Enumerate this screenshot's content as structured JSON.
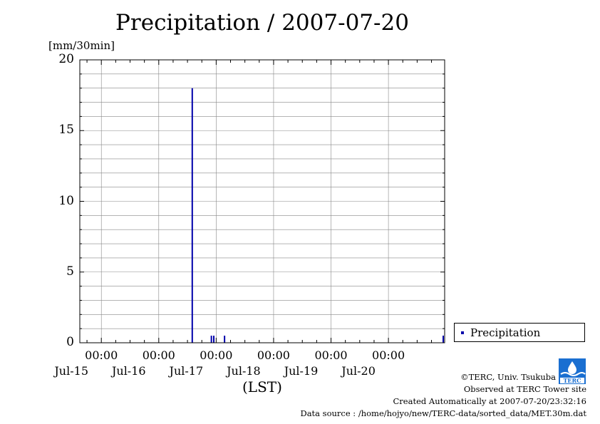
{
  "colors": {
    "bar": "#0000aa",
    "grid": "#888888",
    "logo": "#1a6fd1"
  },
  "chart_data": {
    "type": "bar",
    "title": "Precipitation / 2007-07-20",
    "ylabel": "[mm/30min]",
    "xlabel": "(LST)",
    "ylim": [
      0,
      20
    ],
    "yticks": [
      0,
      5,
      10,
      15,
      20
    ],
    "xlim": [
      "2007-07-14 15:00",
      "2007-07-20 23:30"
    ],
    "xticks": [
      {
        "time": "00:00",
        "date": "Jul-15"
      },
      {
        "time": "00:00",
        "date": "Jul-16"
      },
      {
        "time": "00:00",
        "date": "Jul-17"
      },
      {
        "time": "00:00",
        "date": "Jul-18"
      },
      {
        "time": "00:00",
        "date": "Jul-19"
      },
      {
        "time": "00:00",
        "date": "Jul-20"
      }
    ],
    "grid": true,
    "legend_position": "bottom-right",
    "series": [
      {
        "name": "Precipitation",
        "x": [
          "2007-07-16 14:00",
          "2007-07-16 22:00",
          "2007-07-16 23:00",
          "2007-07-17 03:30",
          "2007-07-20 23:00",
          "2007-07-20 23:30"
        ],
        "values": [
          18.0,
          0.5,
          0.5,
          0.5,
          0.5,
          0.5
        ]
      }
    ]
  },
  "legend": {
    "label": "Precipitation"
  },
  "footer": {
    "copyright": "©TERC, Univ. Tsukuba",
    "observed": "Observed at TERC Tower site",
    "created": "Created Automatically at 2007-07-20/23:32:16",
    "source": "Data source : /home/hojyo/new/TERC-data/sorted_data/MET.30m.dat"
  },
  "logo": {
    "text": "TERC"
  }
}
